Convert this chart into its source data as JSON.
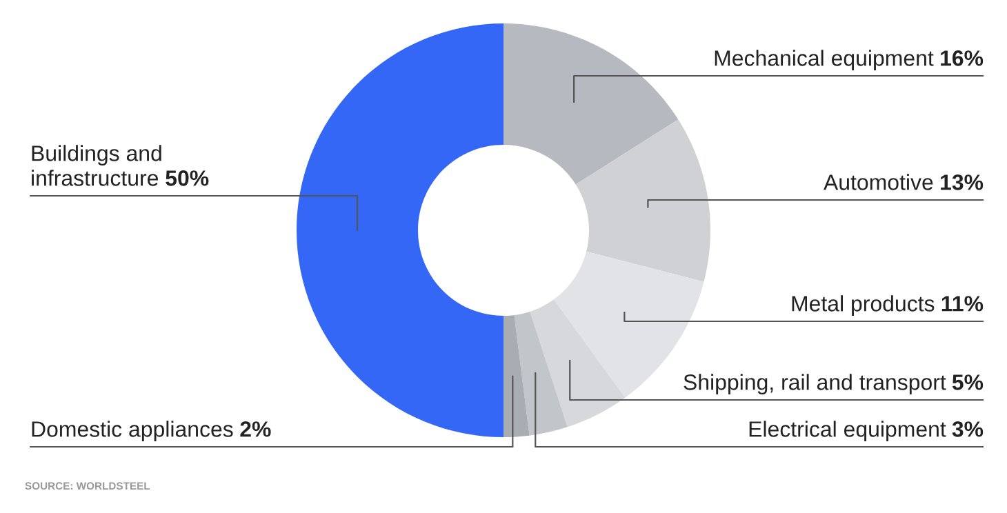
{
  "chart_data": {
    "type": "donut",
    "categories": [
      "Mechanical equipment",
      "Automotive",
      "Metal products",
      "Shipping, rail and transport",
      "Electrical equipment",
      "Domestic appliances",
      "Buildings and\ninfrastructure"
    ],
    "values": [
      16,
      13,
      11,
      5,
      3,
      2,
      50
    ],
    "value_labels": [
      "16%",
      "13%",
      "11%",
      "5%",
      "3%",
      "2%",
      "50%"
    ],
    "colors": [
      "#b6b9bf",
      "#cfd1d5",
      "#e2e3e6",
      "#d6d8db",
      "#c2c5ca",
      "#a8acb3",
      "#3467f5"
    ],
    "annotations": [
      "SOURCE: WORLDSTEEL"
    ]
  }
}
